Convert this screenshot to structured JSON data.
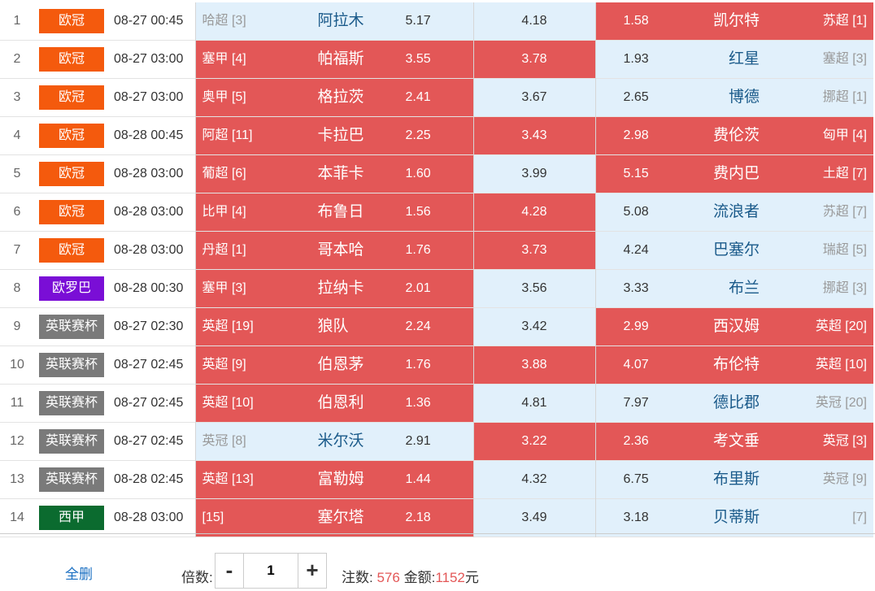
{
  "colors": {
    "selected_bg": "#e35757",
    "unselected_bg": "#e1f0fb",
    "league_colors": {
      "欧冠": "#f45a0d",
      "欧罗巴": "#7a0ed6",
      "英联赛杯": "#7a7a7a",
      "西甲": "#0b6b2f"
    }
  },
  "matches": [
    {
      "idx": "1",
      "league": "欧冠",
      "league_color": "#f45a0d",
      "time": "08-27 00:45",
      "home_rank": "哈超 [3]",
      "home": "阿拉木",
      "home_odds": "5.17",
      "home_sel": false,
      "draw_odds": "4.18",
      "draw_sel": false,
      "away_odds": "1.58",
      "away": "凯尔特",
      "away_rank": "苏超 [1]",
      "away_sel": true
    },
    {
      "idx": "2",
      "league": "欧冠",
      "league_color": "#f45a0d",
      "time": "08-27 03:00",
      "home_rank": "塞甲 [4]",
      "home": "帕福斯",
      "home_odds": "3.55",
      "home_sel": true,
      "draw_odds": "3.78",
      "draw_sel": true,
      "away_odds": "1.93",
      "away": "红星",
      "away_rank": "塞超 [3]",
      "away_sel": false
    },
    {
      "idx": "3",
      "league": "欧冠",
      "league_color": "#f45a0d",
      "time": "08-27 03:00",
      "home_rank": "奥甲 [5]",
      "home": "格拉茨",
      "home_odds": "2.41",
      "home_sel": true,
      "draw_odds": "3.67",
      "draw_sel": false,
      "away_odds": "2.65",
      "away": "博德",
      "away_rank": "挪超 [1]",
      "away_sel": false
    },
    {
      "idx": "4",
      "league": "欧冠",
      "league_color": "#f45a0d",
      "time": "08-28 00:45",
      "home_rank": "阿超 [11]",
      "home": "卡拉巴",
      "home_odds": "2.25",
      "home_sel": true,
      "draw_odds": "3.43",
      "draw_sel": true,
      "away_odds": "2.98",
      "away": "费伦茨",
      "away_rank": "匈甲 [4]",
      "away_sel": true
    },
    {
      "idx": "5",
      "league": "欧冠",
      "league_color": "#f45a0d",
      "time": "08-28 03:00",
      "home_rank": "葡超 [6]",
      "home": "本菲卡",
      "home_odds": "1.60",
      "home_sel": true,
      "draw_odds": "3.99",
      "draw_sel": false,
      "away_odds": "5.15",
      "away": "费内巴",
      "away_rank": "土超 [7]",
      "away_sel": true
    },
    {
      "idx": "6",
      "league": "欧冠",
      "league_color": "#f45a0d",
      "time": "08-28 03:00",
      "home_rank": "比甲 [4]",
      "home": "布鲁日",
      "home_odds": "1.56",
      "home_sel": true,
      "draw_odds": "4.28",
      "draw_sel": true,
      "away_odds": "5.08",
      "away": "流浪者",
      "away_rank": "苏超 [7]",
      "away_sel": false
    },
    {
      "idx": "7",
      "league": "欧冠",
      "league_color": "#f45a0d",
      "time": "08-28 03:00",
      "home_rank": "丹超 [1]",
      "home": "哥本哈",
      "home_odds": "1.76",
      "home_sel": true,
      "draw_odds": "3.73",
      "draw_sel": true,
      "away_odds": "4.24",
      "away": "巴塞尔",
      "away_rank": "瑞超 [5]",
      "away_sel": false
    },
    {
      "idx": "8",
      "league": "欧罗巴",
      "league_color": "#7a0ed6",
      "time": "08-28 00:30",
      "home_rank": "塞甲 [3]",
      "home": "拉纳卡",
      "home_odds": "2.01",
      "home_sel": true,
      "draw_odds": "3.56",
      "draw_sel": false,
      "away_odds": "3.33",
      "away": "布兰",
      "away_rank": "挪超 [3]",
      "away_sel": false
    },
    {
      "idx": "9",
      "league": "英联赛杯",
      "league_color": "#7a7a7a",
      "time": "08-27 02:30",
      "home_rank": "英超 [19]",
      "home": "狼队",
      "home_odds": "2.24",
      "home_sel": true,
      "draw_odds": "3.42",
      "draw_sel": false,
      "away_odds": "2.99",
      "away": "西汉姆",
      "away_rank": "英超 [20]",
      "away_sel": true
    },
    {
      "idx": "10",
      "league": "英联赛杯",
      "league_color": "#7a7a7a",
      "time": "08-27 02:45",
      "home_rank": "英超 [9]",
      "home": "伯恩茅",
      "home_odds": "1.76",
      "home_sel": true,
      "draw_odds": "3.88",
      "draw_sel": true,
      "away_odds": "4.07",
      "away": "布伦特",
      "away_rank": "英超 [10]",
      "away_sel": true
    },
    {
      "idx": "11",
      "league": "英联赛杯",
      "league_color": "#7a7a7a",
      "time": "08-27 02:45",
      "home_rank": "英超 [10]",
      "home": "伯恩利",
      "home_odds": "1.36",
      "home_sel": true,
      "draw_odds": "4.81",
      "draw_sel": false,
      "away_odds": "7.97",
      "away": "德比郡",
      "away_rank": "英冠 [20]",
      "away_sel": false
    },
    {
      "idx": "12",
      "league": "英联赛杯",
      "league_color": "#7a7a7a",
      "time": "08-27 02:45",
      "home_rank": "英冠 [8]",
      "home": "米尔沃",
      "home_odds": "2.91",
      "home_sel": false,
      "draw_odds": "3.22",
      "draw_sel": true,
      "away_odds": "2.36",
      "away": "考文垂",
      "away_rank": "英冠 [3]",
      "away_sel": true
    },
    {
      "idx": "13",
      "league": "英联赛杯",
      "league_color": "#7a7a7a",
      "time": "08-28 02:45",
      "home_rank": "英超 [13]",
      "home": "富勒姆",
      "home_odds": "1.44",
      "home_sel": true,
      "draw_odds": "4.32",
      "draw_sel": false,
      "away_odds": "6.75",
      "away": "布里斯",
      "away_rank": "英冠 [9]",
      "away_sel": false
    },
    {
      "idx": "14",
      "league": "西甲",
      "league_color": "#0b6b2f",
      "time": "08-28 03:00",
      "home_rank": "[15]",
      "home": "塞尔塔",
      "home_odds": "2.18",
      "home_sel": true,
      "draw_odds": "3.49",
      "draw_sel": false,
      "away_odds": "3.18",
      "away": "贝蒂斯",
      "away_rank": "[7]",
      "away_sel": false
    }
  ],
  "footer": {
    "clear_label": "全删",
    "multiplier_label": "倍数:",
    "minus": "-",
    "plus": "+",
    "multiplier_value": "1",
    "bets_label": "注数:",
    "bets_value": "576",
    "amount_label": "金额:",
    "amount_value": "1152",
    "currency": "元"
  }
}
